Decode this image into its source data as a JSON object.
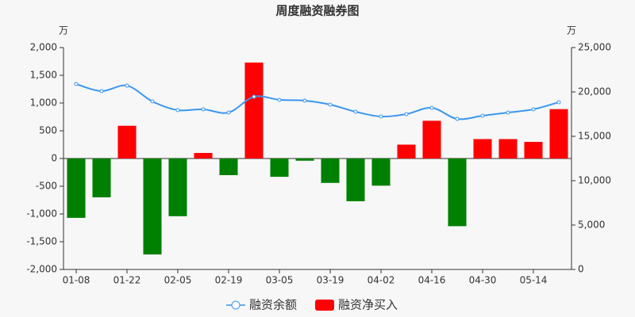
{
  "chart_data": {
    "type": "bar-line",
    "title": "周度融资融券图",
    "y_unit": "万",
    "y2_unit": "万",
    "categories": [
      "01-08",
      null,
      "01-22",
      null,
      "02-05",
      null,
      "02-19",
      null,
      "03-05",
      null,
      "03-19",
      null,
      "04-02",
      null,
      "04-16",
      null,
      "04-30",
      null,
      "05-14",
      null
    ],
    "series": [
      {
        "name": "融资余额",
        "type": "line",
        "axis": "y2",
        "color": "#3a96f0",
        "values": [
          20890,
          20090,
          20710,
          18930,
          17950,
          18040,
          17680,
          19460,
          19110,
          19020,
          18570,
          17770,
          17230,
          17500,
          18210,
          16960,
          17320,
          17680,
          18040,
          18840
        ]
      },
      {
        "name": "融资净买入",
        "type": "bar",
        "color": "#ff0000",
        "negative_color": "#008000",
        "values": [
          -1070,
          -700,
          590,
          -1730,
          -1040,
          100,
          -300,
          1730,
          -330,
          -40,
          -440,
          -770,
          -490,
          250,
          680,
          -1220,
          350,
          350,
          300,
          890
        ]
      }
    ],
    "ylim": [
      -2000,
      2000
    ],
    "yticks": [
      {
        "value": -2000,
        "label": "-2,000"
      },
      {
        "value": -1500,
        "label": "-1,500"
      },
      {
        "value": -1000,
        "label": "-1,000"
      },
      -500,
      0,
      500,
      {
        "value": 1000,
        "label": "1,000"
      },
      {
        "value": 1500,
        "label": "1,500"
      },
      {
        "value": 2000,
        "label": "2,000"
      }
    ],
    "y2lim": [
      0,
      25000
    ],
    "y2ticks": [
      0,
      {
        "value": 5000,
        "label": "5,000"
      },
      {
        "value": 10000,
        "label": "10,000"
      },
      {
        "value": 15000,
        "label": "15,000"
      },
      {
        "value": 20000,
        "label": "20,000"
      },
      {
        "value": 25000,
        "label": "25,000"
      }
    ]
  }
}
